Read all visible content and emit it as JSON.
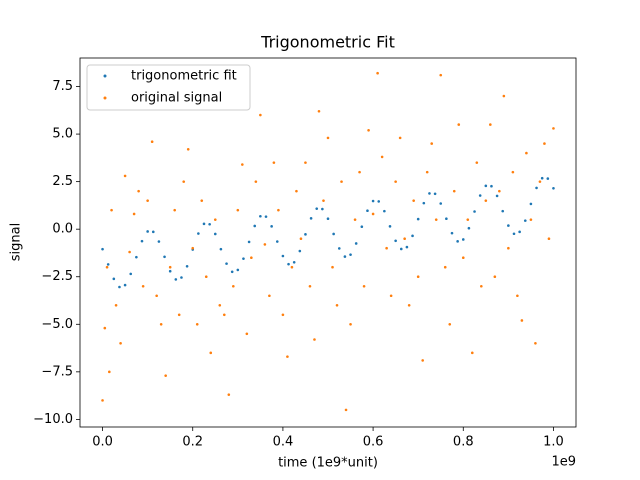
{
  "chart_data": {
    "type": "scatter",
    "title": "Trigonometric Fit",
    "x_label": "time (1e9*unit)",
    "y_label": "signal",
    "x_offset_text": "1e9",
    "xlim": [
      -50000000,
      1050000000
    ],
    "ylim": [
      -10.4,
      9.0
    ],
    "xticks": [
      {
        "value": 0,
        "label": "0.0"
      },
      {
        "value": 200000000,
        "label": "0.2"
      },
      {
        "value": 400000000,
        "label": "0.4"
      },
      {
        "value": 600000000,
        "label": "0.6"
      },
      {
        "value": 800000000,
        "label": "0.8"
      },
      {
        "value": 1000000000,
        "label": "1.0"
      }
    ],
    "yticks": [
      {
        "value": -10,
        "label": "−10.0"
      },
      {
        "value": -7.5,
        "label": "−7.5"
      },
      {
        "value": -5,
        "label": "−5.0"
      },
      {
        "value": -2.5,
        "label": "−2.5"
      },
      {
        "value": 0,
        "label": "0.0"
      },
      {
        "value": 2.5,
        "label": "2.5"
      },
      {
        "value": 5,
        "label": "5.0"
      },
      {
        "value": 7.5,
        "label": "7.5"
      }
    ],
    "legend": "upper left",
    "grid": false,
    "series": [
      {
        "name": "trigonometric fit",
        "color": "#1f77b4",
        "x": [
          0,
          12500000,
          25000000,
          37500000,
          50000000,
          62500000,
          75000000,
          87500000,
          100000000,
          112500000,
          125000000,
          137500000,
          150000000,
          162500000,
          175000000,
          187500000,
          200000000,
          212500000,
          225000000,
          237500000,
          250000000,
          262500000,
          275000000,
          287500000,
          300000000,
          312500000,
          325000000,
          337500000,
          350000000,
          362500000,
          375000000,
          387500000,
          400000000,
          412500000,
          425000000,
          437500000,
          450000000,
          462500000,
          475000000,
          487500000,
          500000000,
          512500000,
          525000000,
          537500000,
          550000000,
          562500000,
          575000000,
          587500000,
          600000000,
          612500000,
          625000000,
          637500000,
          650000000,
          662500000,
          675000000,
          687500000,
          700000000,
          712500000,
          725000000,
          737500000,
          750000000,
          762500000,
          775000000,
          787500000,
          800000000,
          812500000,
          825000000,
          837500000,
          850000000,
          862500000,
          875000000,
          887500000,
          900000000,
          912500000,
          925000000,
          937500000,
          950000000,
          962500000,
          975000000,
          987500000,
          1000000000
        ],
        "values": [
          -1.05,
          -1.85,
          -2.61,
          -3.04,
          -2.94,
          -2.35,
          -1.47,
          -0.63,
          -0.12,
          -0.14,
          -0.65,
          -1.45,
          -2.21,
          -2.64,
          -2.54,
          -1.95,
          -1.07,
          -0.23,
          0.28,
          0.26,
          -0.25,
          -1.05,
          -1.81,
          -2.24,
          -2.14,
          -1.55,
          -0.67,
          0.17,
          0.68,
          0.66,
          0.15,
          -0.65,
          -1.41,
          -1.84,
          -1.74,
          -1.15,
          -0.27,
          0.57,
          1.08,
          1.06,
          0.55,
          -0.25,
          -1.01,
          -1.44,
          -1.34,
          -0.75,
          0.13,
          0.97,
          1.48,
          1.46,
          0.95,
          0.15,
          -0.61,
          -1.04,
          -0.94,
          -0.35,
          0.53,
          1.37,
          1.88,
          1.86,
          1.35,
          0.55,
          -0.21,
          -0.64,
          -0.54,
          0.05,
          0.93,
          1.77,
          2.28,
          2.26,
          1.75,
          0.95,
          0.19,
          -0.24,
          -0.14,
          0.45,
          1.33,
          2.17,
          2.68,
          2.66,
          2.15
        ]
      },
      {
        "name": "original signal",
        "color": "#ff7f0e",
        "x": [
          0,
          5000000,
          10000000,
          15000000,
          20000000,
          30000000,
          40000000,
          50000000,
          60000000,
          70000000,
          80000000,
          90000000,
          100000000,
          110000000,
          120000000,
          130000000,
          140000000,
          150000000,
          160000000,
          170000000,
          180000000,
          190000000,
          200000000,
          210000000,
          220000000,
          230000000,
          240000000,
          250000000,
          260000000,
          270000000,
          280000000,
          290000000,
          300000000,
          310000000,
          320000000,
          330000000,
          340000000,
          350000000,
          360000000,
          370000000,
          380000000,
          390000000,
          400000000,
          410000000,
          420000000,
          430000000,
          440000000,
          450000000,
          460000000,
          470000000,
          480000000,
          490000000,
          500000000,
          510000000,
          520000000,
          530000000,
          540000000,
          550000000,
          560000000,
          570000000,
          580000000,
          590000000,
          600000000,
          610000000,
          620000000,
          630000000,
          640000000,
          650000000,
          660000000,
          670000000,
          680000000,
          690000000,
          700000000,
          710000000,
          720000000,
          730000000,
          740000000,
          750000000,
          760000000,
          770000000,
          780000000,
          790000000,
          800000000,
          810000000,
          820000000,
          830000000,
          840000000,
          850000000,
          860000000,
          870000000,
          880000000,
          890000000,
          900000000,
          910000000,
          920000000,
          930000000,
          940000000,
          950000000,
          960000000,
          970000000,
          980000000,
          990000000,
          1000000000
        ],
        "values": [
          -9.0,
          -5.2,
          -2.0,
          -7.5,
          1.0,
          -4.0,
          -6.0,
          2.8,
          -1.2,
          0.8,
          2.0,
          -3.0,
          1.5,
          4.6,
          -3.5,
          -5.0,
          -7.7,
          -2.0,
          1.0,
          -4.5,
          2.5,
          4.2,
          -1.0,
          -5.0,
          1.5,
          -2.5,
          -6.5,
          0.5,
          -4.0,
          -4.5,
          -8.7,
          -3.0,
          1.0,
          3.4,
          -5.5,
          -1.5,
          2.5,
          6.0,
          -0.8,
          -3.5,
          3.5,
          1.0,
          -4.5,
          -6.7,
          -2.0,
          2.0,
          -0.5,
          3.5,
          -3.0,
          -5.8,
          6.2,
          1.5,
          4.8,
          -2.0,
          -4.0,
          2.5,
          -9.5,
          -5.0,
          0.5,
          3.0,
          -3.0,
          5.2,
          0.8,
          8.2,
          3.8,
          -1.0,
          -3.5,
          2.5,
          4.8,
          -0.5,
          -4.0,
          1.5,
          -2.5,
          -6.9,
          3.0,
          4.5,
          0.5,
          8.1,
          -2.0,
          -5.0,
          2.0,
          5.5,
          -1.5,
          0.5,
          -6.5,
          3.5,
          -3.0,
          1.5,
          5.5,
          -2.5,
          2.0,
          7.0,
          -1.0,
          3.0,
          -3.5,
          -4.8,
          4.0,
          0.5,
          -6.0,
          2.5,
          4.5,
          -0.5,
          5.3
        ]
      }
    ]
  }
}
